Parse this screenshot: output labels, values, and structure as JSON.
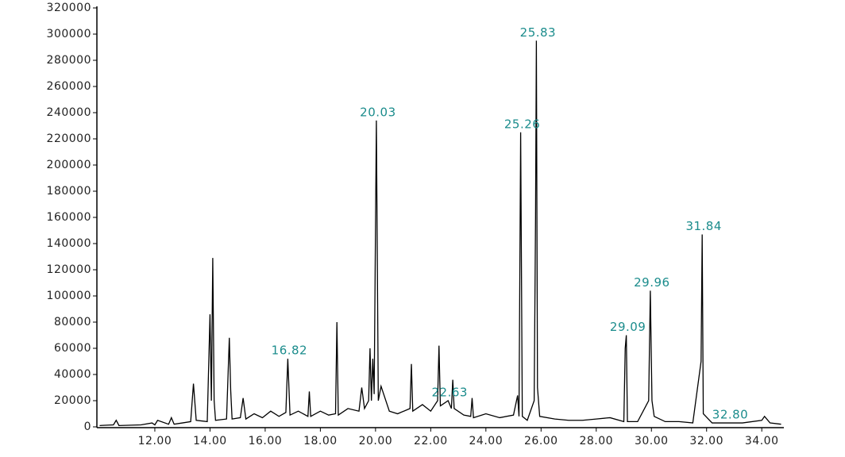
{
  "chart_data": {
    "type": "line",
    "color": "#000000",
    "annotation_color": "#1b8c8c",
    "xlim": [
      9.9,
      34.8
    ],
    "ylim": [
      0,
      320000
    ],
    "yticks": [
      0,
      20000,
      40000,
      60000,
      80000,
      100000,
      120000,
      140000,
      160000,
      180000,
      200000,
      220000,
      240000,
      260000,
      280000,
      300000,
      320000
    ],
    "xticks": [
      {
        "value": 12,
        "label": "12.00"
      },
      {
        "value": 14,
        "label": "14.00"
      },
      {
        "value": 16,
        "label": "16.00"
      },
      {
        "value": 18,
        "label": "18.00"
      },
      {
        "value": 20,
        "label": "20.00"
      },
      {
        "value": 22,
        "label": "22.00"
      },
      {
        "value": 24,
        "label": "24.00"
      },
      {
        "value": 26,
        "label": "26.00"
      },
      {
        "value": 28,
        "label": "28.00"
      },
      {
        "value": 30,
        "label": "30.00"
      },
      {
        "value": 32,
        "label": "32.00"
      },
      {
        "value": 34,
        "label": "34.00"
      }
    ],
    "x": [
      10.0,
      10.5,
      10.6,
      10.7,
      11.5,
      11.9,
      12.0,
      12.1,
      12.5,
      12.6,
      12.7,
      13.0,
      13.3,
      13.4,
      13.5,
      13.9,
      14.0,
      14.05,
      14.1,
      14.15,
      14.2,
      14.6,
      14.7,
      14.75,
      14.8,
      15.1,
      15.2,
      15.3,
      15.6,
      15.9,
      16.2,
      16.5,
      16.75,
      16.82,
      16.9,
      17.2,
      17.55,
      17.6,
      17.65,
      18.0,
      18.3,
      18.55,
      18.6,
      18.65,
      19.0,
      19.4,
      19.5,
      19.6,
      19.75,
      19.8,
      19.85,
      19.9,
      19.95,
      20.03,
      20.1,
      20.2,
      20.5,
      20.8,
      21.25,
      21.3,
      21.35,
      21.7,
      22.0,
      22.25,
      22.3,
      22.35,
      22.63,
      22.75,
      22.8,
      22.85,
      23.2,
      23.45,
      23.5,
      23.55,
      24.0,
      24.5,
      25.0,
      25.15,
      25.2,
      25.26,
      25.32,
      25.5,
      25.75,
      25.8,
      25.83,
      25.87,
      25.95,
      26.5,
      27.0,
      27.5,
      28.0,
      28.5,
      29.0,
      29.05,
      29.09,
      29.13,
      29.5,
      29.9,
      29.96,
      30.02,
      30.1,
      30.5,
      31.0,
      31.5,
      31.8,
      31.84,
      31.88,
      32.2,
      32.8,
      33.3,
      34.0,
      34.1,
      34.3,
      34.7
    ],
    "values": [
      1000,
      1500,
      5000,
      1000,
      1500,
      3000,
      1500,
      5000,
      2000,
      7000,
      2000,
      3000,
      4000,
      33000,
      5000,
      4000,
      86000,
      20000,
      129000,
      20000,
      5000,
      6000,
      68000,
      28000,
      6000,
      7000,
      22000,
      6000,
      10000,
      7000,
      12000,
      8000,
      11000,
      52000,
      9000,
      12000,
      8000,
      27000,
      8000,
      12000,
      9000,
      10000,
      80000,
      9000,
      14000,
      12000,
      30000,
      14000,
      20000,
      60000,
      20000,
      52000,
      25000,
      234000,
      20000,
      31000,
      12000,
      10000,
      14000,
      48000,
      12000,
      17000,
      12000,
      20000,
      62000,
      16000,
      20000,
      14000,
      36000,
      14000,
      9000,
      8000,
      22000,
      7000,
      10000,
      7000,
      9000,
      24000,
      8000,
      225000,
      8000,
      5000,
      20000,
      160000,
      295000,
      30000,
      8000,
      6000,
      5000,
      5000,
      6000,
      7000,
      4000,
      60000,
      70000,
      4000,
      4000,
      20000,
      104000,
      20000,
      8000,
      4000,
      4000,
      3000,
      50000,
      147000,
      10000,
      3000,
      3000,
      3000,
      5000,
      8000,
      3000,
      2000
    ],
    "annotations": [
      {
        "label": "16.82",
        "x": 16.82,
        "y": 52000
      },
      {
        "label": "20.03",
        "x": 20.03,
        "y": 234000
      },
      {
        "label": "22.63",
        "x": 22.63,
        "y": 20000
      },
      {
        "label": "25.26",
        "x": 25.26,
        "y": 225000
      },
      {
        "label": "25.83",
        "x": 25.83,
        "y": 295000
      },
      {
        "label": "29.09",
        "x": 29.09,
        "y": 70000
      },
      {
        "label": "29.96",
        "x": 29.96,
        "y": 104000
      },
      {
        "label": "31.84",
        "x": 31.84,
        "y": 147000
      },
      {
        "label": "32.80",
        "x": 32.8,
        "y": 3000
      }
    ]
  }
}
